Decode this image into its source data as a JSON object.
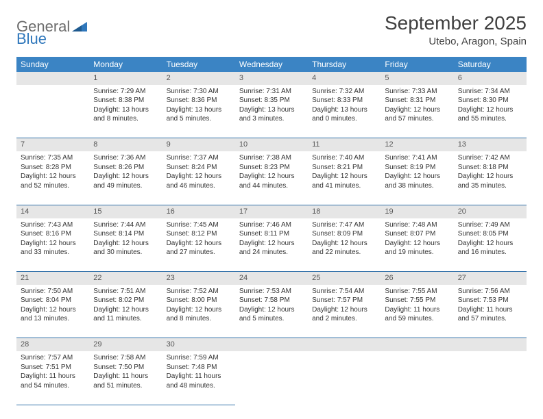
{
  "brand": {
    "general": "General",
    "blue": "Blue"
  },
  "title": "September 2025",
  "location": "Utebo, Aragon, Spain",
  "colors": {
    "header_bg": "#3b84c4",
    "daynum_bg": "#e6e6e6",
    "row_border": "#2f6fa8",
    "brand_blue": "#2f77bb",
    "brand_gray": "#6b6b6b"
  },
  "weekdays": [
    "Sunday",
    "Monday",
    "Tuesday",
    "Wednesday",
    "Thursday",
    "Friday",
    "Saturday"
  ],
  "weeks": [
    {
      "days": [
        null,
        {
          "n": 1,
          "sr": "7:29 AM",
          "ss": "8:38 PM",
          "dl": "13 hours and 8 minutes."
        },
        {
          "n": 2,
          "sr": "7:30 AM",
          "ss": "8:36 PM",
          "dl": "13 hours and 5 minutes."
        },
        {
          "n": 3,
          "sr": "7:31 AM",
          "ss": "8:35 PM",
          "dl": "13 hours and 3 minutes."
        },
        {
          "n": 4,
          "sr": "7:32 AM",
          "ss": "8:33 PM",
          "dl": "13 hours and 0 minutes."
        },
        {
          "n": 5,
          "sr": "7:33 AM",
          "ss": "8:31 PM",
          "dl": "12 hours and 57 minutes."
        },
        {
          "n": 6,
          "sr": "7:34 AM",
          "ss": "8:30 PM",
          "dl": "12 hours and 55 minutes."
        }
      ]
    },
    {
      "days": [
        {
          "n": 7,
          "sr": "7:35 AM",
          "ss": "8:28 PM",
          "dl": "12 hours and 52 minutes."
        },
        {
          "n": 8,
          "sr": "7:36 AM",
          "ss": "8:26 PM",
          "dl": "12 hours and 49 minutes."
        },
        {
          "n": 9,
          "sr": "7:37 AM",
          "ss": "8:24 PM",
          "dl": "12 hours and 46 minutes."
        },
        {
          "n": 10,
          "sr": "7:38 AM",
          "ss": "8:23 PM",
          "dl": "12 hours and 44 minutes."
        },
        {
          "n": 11,
          "sr": "7:40 AM",
          "ss": "8:21 PM",
          "dl": "12 hours and 41 minutes."
        },
        {
          "n": 12,
          "sr": "7:41 AM",
          "ss": "8:19 PM",
          "dl": "12 hours and 38 minutes."
        },
        {
          "n": 13,
          "sr": "7:42 AM",
          "ss": "8:18 PM",
          "dl": "12 hours and 35 minutes."
        }
      ]
    },
    {
      "days": [
        {
          "n": 14,
          "sr": "7:43 AM",
          "ss": "8:16 PM",
          "dl": "12 hours and 33 minutes."
        },
        {
          "n": 15,
          "sr": "7:44 AM",
          "ss": "8:14 PM",
          "dl": "12 hours and 30 minutes."
        },
        {
          "n": 16,
          "sr": "7:45 AM",
          "ss": "8:12 PM",
          "dl": "12 hours and 27 minutes."
        },
        {
          "n": 17,
          "sr": "7:46 AM",
          "ss": "8:11 PM",
          "dl": "12 hours and 24 minutes."
        },
        {
          "n": 18,
          "sr": "7:47 AM",
          "ss": "8:09 PM",
          "dl": "12 hours and 22 minutes."
        },
        {
          "n": 19,
          "sr": "7:48 AM",
          "ss": "8:07 PM",
          "dl": "12 hours and 19 minutes."
        },
        {
          "n": 20,
          "sr": "7:49 AM",
          "ss": "8:05 PM",
          "dl": "12 hours and 16 minutes."
        }
      ]
    },
    {
      "days": [
        {
          "n": 21,
          "sr": "7:50 AM",
          "ss": "8:04 PM",
          "dl": "12 hours and 13 minutes."
        },
        {
          "n": 22,
          "sr": "7:51 AM",
          "ss": "8:02 PM",
          "dl": "12 hours and 11 minutes."
        },
        {
          "n": 23,
          "sr": "7:52 AM",
          "ss": "8:00 PM",
          "dl": "12 hours and 8 minutes."
        },
        {
          "n": 24,
          "sr": "7:53 AM",
          "ss": "7:58 PM",
          "dl": "12 hours and 5 minutes."
        },
        {
          "n": 25,
          "sr": "7:54 AM",
          "ss": "7:57 PM",
          "dl": "12 hours and 2 minutes."
        },
        {
          "n": 26,
          "sr": "7:55 AM",
          "ss": "7:55 PM",
          "dl": "11 hours and 59 minutes."
        },
        {
          "n": 27,
          "sr": "7:56 AM",
          "ss": "7:53 PM",
          "dl": "11 hours and 57 minutes."
        }
      ]
    },
    {
      "days": [
        {
          "n": 28,
          "sr": "7:57 AM",
          "ss": "7:51 PM",
          "dl": "11 hours and 54 minutes."
        },
        {
          "n": 29,
          "sr": "7:58 AM",
          "ss": "7:50 PM",
          "dl": "11 hours and 51 minutes."
        },
        {
          "n": 30,
          "sr": "7:59 AM",
          "ss": "7:48 PM",
          "dl": "11 hours and 48 minutes."
        },
        null,
        null,
        null,
        null
      ]
    }
  ],
  "labels": {
    "sunrise": "Sunrise:",
    "sunset": "Sunset:",
    "daylight": "Daylight:"
  }
}
